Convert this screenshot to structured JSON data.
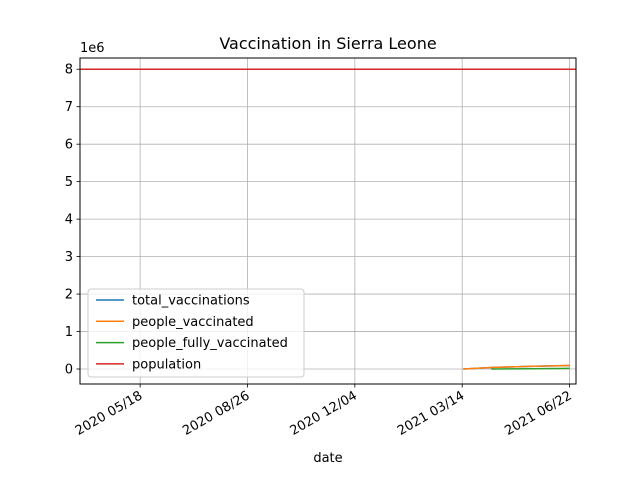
{
  "chart_data": {
    "type": "line",
    "title": "Vaccination in Sierra Leone",
    "xlabel": "date",
    "ylabel": "",
    "y_offset_label": "1e6",
    "y_multiplier": 1000000,
    "xlim": [
      "2020-03-23",
      "2021-06-28"
    ],
    "ylim": [
      -400000,
      8300000
    ],
    "x_ticks": [
      "2020-05-18",
      "2020-08-26",
      "2020-12-04",
      "2021-03-14",
      "2021-06-22"
    ],
    "x_tick_labels": [
      "2020 05/18",
      "2020 08/26",
      "2020 12/04",
      "2021 03/14",
      "2021 06/22"
    ],
    "y_ticks": [
      0,
      1,
      2,
      3,
      4,
      5,
      6,
      7,
      8
    ],
    "y_tick_labels": [
      "0",
      "1",
      "2",
      "3",
      "4",
      "5",
      "6",
      "7",
      "8"
    ],
    "grid": true,
    "legend_position": "lower-left",
    "series": [
      {
        "name": "total_vaccinations",
        "color": "#1f77b4",
        "points": [
          [
            "2021-03-15",
            0
          ],
          [
            "2021-04-15",
            45000
          ],
          [
            "2021-05-15",
            70000
          ],
          [
            "2021-06-22",
            95000
          ]
        ]
      },
      {
        "name": "people_vaccinated",
        "color": "#ff7f0e",
        "points": [
          [
            "2021-03-15",
            0
          ],
          [
            "2021-04-15",
            45000
          ],
          [
            "2021-05-15",
            70000
          ],
          [
            "2021-06-22",
            95000
          ]
        ]
      },
      {
        "name": "people_fully_vaccinated",
        "color": "#2ca02c",
        "points": [
          [
            "2021-04-10",
            0
          ],
          [
            "2021-05-15",
            5000
          ],
          [
            "2021-06-22",
            15000
          ]
        ]
      },
      {
        "name": "population",
        "color": "#d62728",
        "points": [
          [
            "2020-03-23",
            8000000
          ],
          [
            "2021-06-28",
            8000000
          ]
        ]
      }
    ]
  }
}
